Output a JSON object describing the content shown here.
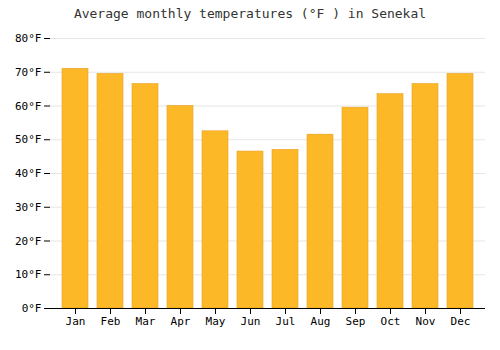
{
  "chart_data": {
    "type": "bar",
    "title": "Average monthly temperatures (°F ) in Senekal",
    "categories": [
      "Jan",
      "Feb",
      "Mar",
      "Apr",
      "May",
      "Jun",
      "Jul",
      "Aug",
      "Sep",
      "Oct",
      "Nov",
      "Dec"
    ],
    "values": [
      71,
      69.5,
      66.5,
      60,
      52.5,
      46.5,
      47,
      51.5,
      59.5,
      63.5,
      66.5,
      69.5
    ],
    "color": "#FDB827",
    "ylim": [
      0,
      80
    ],
    "yticks": [
      {
        "value": 0,
        "label": "0°F"
      },
      {
        "value": 10,
        "label": "10°F"
      },
      {
        "value": 20,
        "label": "20°F"
      },
      {
        "value": 30,
        "label": "30°F"
      },
      {
        "value": 40,
        "label": "40°F"
      },
      {
        "value": 50,
        "label": "50°F"
      },
      {
        "value": 60,
        "label": "60°F"
      },
      {
        "value": 70,
        "label": "70°F"
      },
      {
        "value": 80,
        "label": "80°F"
      }
    ],
    "grid": true
  }
}
